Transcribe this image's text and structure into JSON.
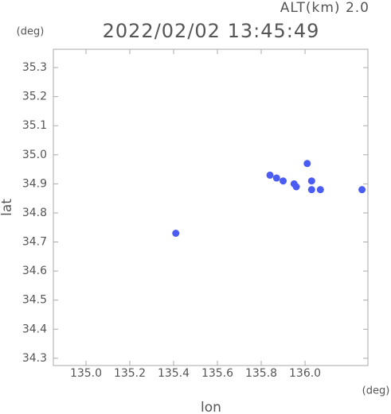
{
  "chart_data": {
    "type": "scatter",
    "title": "2022/02/02 13:45:49",
    "subtitle": "ALT(km) 2.0",
    "x_label": "lon",
    "y_label": "lat",
    "x_unit": "(deg)",
    "y_unit": "(deg)",
    "xlim": [
      134.851,
      136.287
    ],
    "ylim": [
      34.275,
      35.363
    ],
    "xticks": [
      {
        "value": 135,
        "label": "135.0"
      },
      135.2,
      135.4,
      135.6,
      135.8,
      {
        "value": 136,
        "label": "136.0"
      }
    ],
    "yticks": [
      34.3,
      34.4,
      34.5,
      34.6,
      34.7,
      34.8,
      34.9,
      {
        "value": 35,
        "label": "35.0"
      },
      35.1,
      35.2,
      35.3
    ],
    "grid": false,
    "color": "#4b5cf2",
    "x": [
      135.41,
      135.84,
      135.87,
      135.9,
      135.95,
      135.96,
      136.01,
      136.03,
      136.03,
      136.07,
      136.26
    ],
    "y": [
      34.73,
      34.93,
      34.92,
      34.91,
      34.9,
      34.89,
      34.97,
      34.91,
      34.88,
      34.88,
      34.88
    ]
  }
}
